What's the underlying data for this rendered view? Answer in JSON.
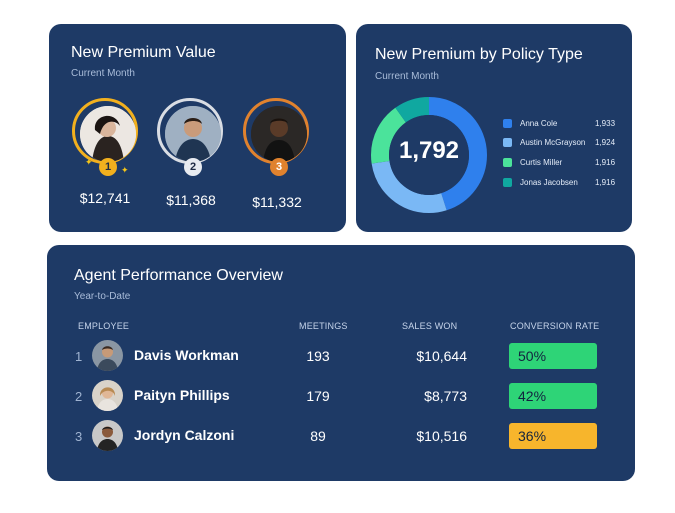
{
  "premium_card": {
    "title": "New Premium Value",
    "subtitle": "Current Month",
    "leaders": [
      {
        "rank": "1",
        "amount": "$12,741",
        "ring_color": "#f2b01e"
      },
      {
        "rank": "2",
        "amount": "$11,368",
        "ring_color": "#d9dde4"
      },
      {
        "rank": "3",
        "amount": "$11,332",
        "ring_color": "#e0822e"
      }
    ]
  },
  "policy_card": {
    "title": "New Premium by Policy Type",
    "subtitle": "Current Month",
    "total": "1,792",
    "legend": [
      {
        "name": "Anna Cole",
        "value": "1,933",
        "color": "#2f80ed"
      },
      {
        "name": "Austin McGrayson",
        "value": "1,924",
        "color": "#7ab8f5"
      },
      {
        "name": "Curtis Miller",
        "value": "1,916",
        "color": "#4be39b"
      },
      {
        "name": "Jonas Jacobsen",
        "value": "1,916",
        "color": "#10a8a0"
      }
    ]
  },
  "agents_card": {
    "title": "Agent Performance Overview",
    "subtitle": "Year-to-Date",
    "headers": {
      "employee": "EMPLOYEE",
      "meetings": "MEETINGS",
      "sales_won": "SALES WON",
      "conversion_rate": "CONVERSION RATE"
    },
    "rows": [
      {
        "rank": "1",
        "name": "Davis Workman",
        "meetings": "193",
        "sales": "$10,644",
        "rate": "50%",
        "rate_color": "#2ed477"
      },
      {
        "rank": "2",
        "name": "Paityn Phillips",
        "meetings": "179",
        "sales": "$8,773",
        "rate": "42%",
        "rate_color": "#2ed477"
      },
      {
        "rank": "3",
        "name": "Jordyn Calzoni",
        "meetings": "89",
        "sales": "$10,516",
        "rate": "36%",
        "rate_color": "#f7b52c"
      }
    ]
  }
}
